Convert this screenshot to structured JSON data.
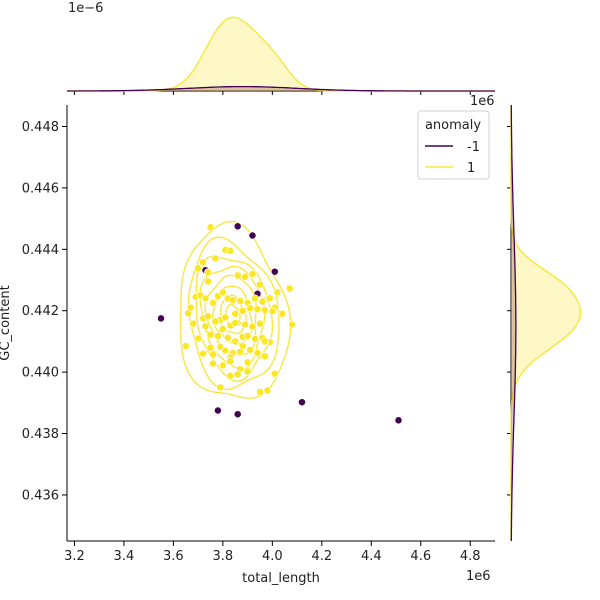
{
  "chart_data": {
    "type": "scatter",
    "xlabel": "total_length",
    "ylabel": "GC_content",
    "x_offset_label": "1e6",
    "y_offset_label": "1e6",
    "marg_offset_label": "1e−6",
    "xlim": [
      3.17,
      4.9
    ],
    "ylim": [
      0.4345,
      0.4487
    ],
    "x_ticks": [
      "3.2",
      "3.4",
      "3.6",
      "3.8",
      "4.0",
      "4.2",
      "4.4",
      "4.6",
      "4.8"
    ],
    "y_ticks": [
      "0.436",
      "0.438",
      "0.440",
      "0.442",
      "0.444",
      "0.446",
      "0.448"
    ],
    "x_tick_values": [
      3.2,
      3.4,
      3.6,
      3.8,
      4.0,
      4.2,
      4.4,
      4.6,
      4.8
    ],
    "y_tick_values": [
      0.436,
      0.438,
      0.44,
      0.442,
      0.444,
      0.446,
      0.448
    ],
    "legend": {
      "title": "anomaly",
      "placement": "top-right"
    },
    "colors": {
      "anomaly": "#440154",
      "normal": "#fde725",
      "kde_normal": "#f7e743",
      "kde_anomaly": "#440154"
    },
    "series": [
      {
        "name": "-1",
        "color": "#440154",
        "x": [
          3.55,
          3.73,
          3.78,
          3.86,
          3.86,
          3.92,
          3.94,
          4.01,
          4.12,
          4.51,
          3.79
        ],
        "y": [
          0.44175,
          0.44332,
          0.43875,
          0.44475,
          0.43863,
          0.44445,
          0.44255,
          0.44327,
          0.43902,
          0.43843,
          0.44171
        ]
      },
      {
        "name": "1",
        "color": "#fde725",
        "x": [
          3.75,
          3.81,
          3.72,
          3.74,
          3.7,
          3.77,
          3.83,
          3.86,
          3.89,
          3.92,
          3.95,
          3.98,
          4.02,
          4.07,
          4.08,
          3.66,
          3.67,
          3.69,
          3.71,
          3.73,
          3.76,
          3.78,
          3.8,
          3.82,
          3.84,
          3.87,
          3.9,
          3.93,
          3.96,
          3.99,
          4.01,
          4.04,
          3.68,
          3.72,
          3.74,
          3.79,
          3.81,
          3.85,
          3.88,
          3.91,
          3.94,
          3.97,
          4.0,
          3.73,
          3.77,
          3.8,
          3.83,
          3.86,
          3.89,
          3.92,
          3.95,
          3.7,
          3.75,
          3.78,
          3.82,
          3.85,
          3.88,
          3.9,
          3.93,
          3.96,
          3.99,
          3.72,
          3.76,
          3.79,
          3.81,
          3.84,
          3.87,
          3.91,
          3.94,
          3.97,
          3.76,
          3.8,
          3.83,
          3.87,
          3.9,
          3.79,
          3.83,
          3.86,
          3.9,
          3.95,
          3.98,
          4.01,
          3.75,
          3.85,
          3.74,
          3.83,
          3.88,
          3.97,
          3.65
        ],
        "y": [
          0.44472,
          0.44398,
          0.44358,
          0.44325,
          0.44338,
          0.4437,
          0.44395,
          0.44315,
          0.4431,
          0.4432,
          0.44285,
          0.44238,
          0.4426,
          0.44272,
          0.44155,
          0.44192,
          0.4421,
          0.44245,
          0.4425,
          0.4424,
          0.44225,
          0.44248,
          0.4426,
          0.4424,
          0.44235,
          0.44232,
          0.44225,
          0.4424,
          0.4423,
          0.4424,
          0.4421,
          0.4419,
          0.44158,
          0.44175,
          0.44182,
          0.4417,
          0.44178,
          0.4419,
          0.442,
          0.44208,
          0.44205,
          0.44202,
          0.44198,
          0.4415,
          0.44165,
          0.4414,
          0.44152,
          0.4416,
          0.44155,
          0.44148,
          0.44158,
          0.4411,
          0.44122,
          0.44118,
          0.44112,
          0.441,
          0.44115,
          0.44118,
          0.44108,
          0.44112,
          0.44098,
          0.4406,
          0.44058,
          0.44082,
          0.4407,
          0.44062,
          0.44066,
          0.44072,
          0.44062,
          0.44052,
          0.44028,
          0.44022,
          0.44048,
          0.4401,
          0.44032,
          0.4395,
          0.43988,
          0.43993,
          0.44002,
          0.43935,
          0.4394,
          0.43995,
          0.4408,
          0.4416,
          0.44295,
          0.44035,
          0.44085,
          0.441,
          0.44085
        ]
      }
    ],
    "kde_levels": [
      {
        "rx": 0.22,
        "ry": 0.00285,
        "rot": -6
      },
      {
        "rx": 0.18,
        "ry": 0.0024,
        "rot": -8
      },
      {
        "rx": 0.15,
        "ry": 0.002,
        "rot": -10
      },
      {
        "rx": 0.125,
        "ry": 0.00165,
        "rot": -8
      },
      {
        "rx": 0.1,
        "ry": 0.0013,
        "rot": -8
      },
      {
        "rx": 0.075,
        "ry": 0.00095,
        "rot": -10
      },
      {
        "rx": 0.05,
        "ry": 0.00062,
        "rot": -10
      },
      {
        "rx": 0.028,
        "ry": 0.00034,
        "rot": -10
      }
    ],
    "kde_center": {
      "x": 3.84,
      "y": 0.44185
    },
    "marginal_x": {
      "normal": {
        "mean": 3.84,
        "sd": 0.12,
        "peak": 1.0
      },
      "anomaly": {
        "mean": 3.88,
        "sd": 0.22,
        "peak": 0.06
      }
    },
    "marginal_y": {
      "normal": {
        "mean": 0.442,
        "sd": 0.00105,
        "peak": 1.0
      },
      "anomaly": {
        "mean": 0.4415,
        "sd": 0.003,
        "peak": 0.07
      }
    }
  }
}
